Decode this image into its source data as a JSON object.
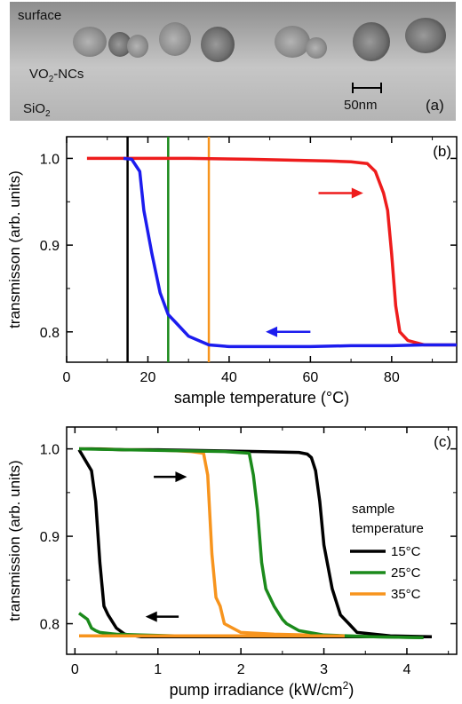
{
  "panel_a": {
    "labels": {
      "surface": "surface",
      "nanocrystals_main": "VO",
      "nanocrystals_sub": "2",
      "nanocrystals_rest": "-NCs",
      "substrate_main": "SiO",
      "substrate_sub": "2",
      "scale_bar": "50nm",
      "panel_label": "(a)"
    },
    "colors": {
      "background": "#b9b9b9",
      "top_band": "#8e8e8e",
      "particle": "#7a7a7a"
    }
  },
  "chart_data": [
    {
      "type": "line",
      "panel_label": "(b)",
      "xlabel": "sample temperature (°C)",
      "ylabel": "transmisson (arb. units)",
      "xlim": [
        0,
        96
      ],
      "ylim": [
        0.765,
        1.025
      ],
      "x_ticks": [
        0,
        20,
        40,
        60,
        80
      ],
      "y_ticks": [
        0.8,
        0.9,
        1.0
      ],
      "y_tick_labels": [
        "0.8",
        "0.9",
        "1.0"
      ],
      "series": [
        {
          "direction": "heating",
          "color": "#ee1c1c",
          "x": [
            5,
            15,
            30,
            45,
            55,
            65,
            70,
            74,
            76,
            78,
            79,
            80,
            81,
            82,
            84,
            88,
            96
          ],
          "y": [
            1.0,
            1.0,
            1.0,
            0.999,
            0.998,
            0.997,
            0.996,
            0.994,
            0.985,
            0.96,
            0.94,
            0.89,
            0.83,
            0.8,
            0.79,
            0.785,
            0.785
          ]
        },
        {
          "direction": "cooling",
          "color": "#1c1cee",
          "x": [
            96,
            88,
            80,
            70,
            60,
            50,
            40,
            35,
            30,
            27,
            25,
            23,
            21,
            19,
            18,
            16,
            14
          ],
          "y": [
            0.785,
            0.785,
            0.784,
            0.784,
            0.783,
            0.783,
            0.783,
            0.785,
            0.795,
            0.81,
            0.82,
            0.845,
            0.89,
            0.94,
            0.985,
            0.999,
            1.0
          ]
        }
      ],
      "vertical_lines": [
        {
          "x": 15,
          "color": "#000000"
        },
        {
          "x": 25,
          "color": "#1b8a1b"
        },
        {
          "x": 35,
          "color": "#f7941d"
        }
      ],
      "arrows": [
        {
          "x_from": 62,
          "x_to": 73,
          "y": 0.96,
          "color": "#ee1c1c"
        },
        {
          "x_from": 60,
          "x_to": 49,
          "y": 0.8,
          "color": "#1c1cee"
        }
      ]
    },
    {
      "type": "line",
      "panel_label": "(c)",
      "xlabel_main": "pump irradiance (kW/cm",
      "xlabel_sup": "2",
      "xlabel_end": ")",
      "ylabel": "transmission (arb. units)",
      "xlim": [
        -0.1,
        4.6
      ],
      "ylim": [
        0.765,
        1.025
      ],
      "x_ticks": [
        0,
        1,
        2,
        3,
        4
      ],
      "y_ticks": [
        0.8,
        0.9,
        1.0
      ],
      "y_tick_labels": [
        "0.8",
        "0.9",
        "1.0"
      ],
      "legend": {
        "title_line1": "sample",
        "title_line2": "temperature",
        "placement": "right"
      },
      "series": [
        {
          "name": "15°C",
          "color": "#000000",
          "x": [
            0.05,
            0.2,
            0.25,
            0.3,
            0.35,
            0.4,
            0.5,
            0.6,
            0.8,
            1.2,
            1.6,
            2.0,
            2.4,
            2.8,
            2.9,
            3.0,
            3.1,
            3.2,
            3.3,
            3.5,
            3.8,
            4.1,
            4.3
          ],
          "y": [
            0.999,
            0.975,
            0.94,
            0.87,
            0.82,
            0.81,
            0.795,
            0.788,
            0.785,
            0.785,
            0.785,
            0.785,
            0.785,
            0.785,
            0.785,
            0.785,
            0.785,
            0.785,
            0.785,
            0.785,
            0.785,
            0.785,
            0.785
          ]
        },
        {
          "name": "25°C",
          "color": "#1b8a1b",
          "x": [
            0.05,
            0.15,
            0.2,
            0.25,
            0.3,
            0.5,
            0.8,
            1.2,
            1.6,
            2.0,
            2.4,
            2.8,
            3.2,
            3.6,
            4.2
          ],
          "y": [
            0.812,
            0.805,
            0.795,
            0.792,
            0.79,
            0.788,
            0.787,
            0.786,
            0.786,
            0.786,
            0.786,
            0.786,
            0.786,
            0.785,
            0.784
          ]
        },
        {
          "name": "35°C",
          "color": "#f7941d",
          "x": [
            0.05,
            0.3,
            0.6,
            0.9,
            1.2,
            1.4,
            1.55,
            1.6,
            1.65,
            1.7,
            1.75,
            1.8,
            2.0,
            2.4,
            2.8,
            3.2
          ],
          "y": [
            1.0,
            1.0,
            0.999,
            0.999,
            0.998,
            0.997,
            0.995,
            0.97,
            0.88,
            0.83,
            0.82,
            0.8,
            0.79,
            0.788,
            0.787,
            0.786
          ]
        }
      ],
      "return_curves": [
        {
          "color": "#000000",
          "x": [
            4.3,
            3.8,
            3.4,
            3.3,
            3.2,
            3.1,
            3.0,
            2.95,
            2.9,
            2.85,
            2.8,
            2.7,
            2.2,
            1.6,
            1.0,
            0.6,
            0.2,
            0.05
          ],
          "y": [
            0.785,
            0.786,
            0.79,
            0.8,
            0.81,
            0.84,
            0.89,
            0.94,
            0.975,
            0.99,
            0.994,
            0.996,
            0.997,
            0.998,
            0.999,
            0.999,
            1.0,
            1.0
          ]
        },
        {
          "color": "#1b8a1b",
          "x": [
            4.2,
            3.6,
            3.0,
            2.7,
            2.55,
            2.5,
            2.4,
            2.3,
            2.25,
            2.2,
            2.15,
            2.1,
            1.8,
            1.2,
            0.6,
            0.05
          ],
          "y": [
            0.784,
            0.785,
            0.787,
            0.792,
            0.8,
            0.805,
            0.82,
            0.84,
            0.87,
            0.93,
            0.97,
            0.995,
            0.997,
            0.998,
            0.999,
            1.0
          ]
        },
        {
          "color": "#f7941d",
          "x": [
            3.25,
            2.4,
            1.6,
            1.0,
            0.6,
            0.3,
            0.05
          ],
          "y": [
            0.786,
            0.786,
            0.786,
            0.786,
            0.786,
            0.786,
            0.786
          ]
        }
      ],
      "arrows": [
        {
          "x_from": 0.95,
          "x_to": 1.35,
          "y": 0.968,
          "color": "#000000"
        },
        {
          "x_from": 1.25,
          "x_to": 0.85,
          "y": 0.808,
          "color": "#000000"
        }
      ]
    }
  ]
}
